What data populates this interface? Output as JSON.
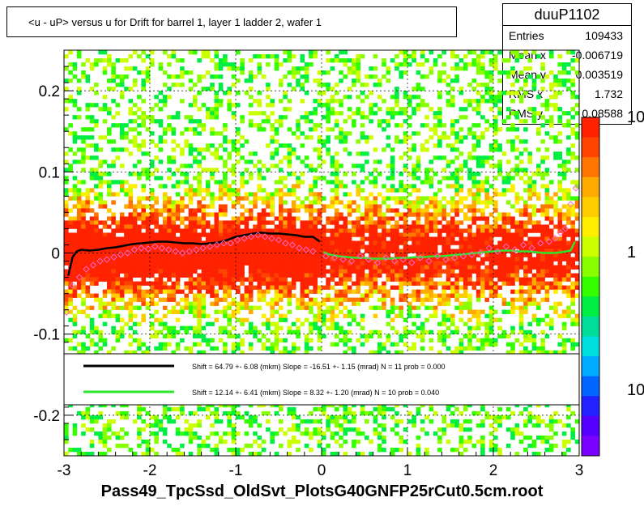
{
  "chart_data": {
    "type": "heatmap",
    "title": "<u - uP>       versus   u for Drift for barrel 1, layer 1 ladder 2, wafer 1",
    "xlabel": "",
    "ylabel": "",
    "xlim": [
      -3,
      3
    ],
    "ylim": [
      -0.25,
      0.25
    ],
    "x_ticks": [
      "-3",
      "-2",
      "-1",
      "0",
      "1",
      "2",
      "3"
    ],
    "y_ticks": [
      "-0.2",
      "-0.1",
      "0",
      "0.1",
      "0.2"
    ],
    "grid": true,
    "colorbar_ticks": [
      "10",
      "1",
      "10"
    ],
    "colors": {
      "black_fit": "#000000",
      "green_fit": "#2ee52e",
      "pink_points": "#ff66cc",
      "heat_high": "#ff2200",
      "heat_mid": "#ffcc00",
      "heat_low": "#22dd22"
    },
    "stats": {
      "name": "duuP1102",
      "rows": [
        {
          "label": "Entries",
          "value": "109433"
        },
        {
          "label": "Mean x",
          "value": "-0.006719"
        },
        {
          "label": "Mean y",
          "value": "0.003519"
        },
        {
          "label": "RMS x",
          "value": "1.732"
        },
        {
          "label": "RMS y",
          "value": "0.08588"
        }
      ]
    },
    "legend": [
      {
        "line_color": "black",
        "text": "Shift =    64.79 +- 6.08 (mkm) Slope =   -16.51 +- 1.15 (mrad)  N = 11 prob = 0.000"
      },
      {
        "line_color": "green",
        "text": "Shift =    12.14 +- 6.41 (mkm) Slope =     8.32 +- 1.20 (mrad)  N = 10 prob = 0.040"
      }
    ],
    "series": [
      {
        "color": "black",
        "x": [
          -2.95,
          -2.9,
          -2.85,
          -2.8,
          -2.7,
          -2.6,
          -2.5,
          -2.4,
          -2.3,
          -2.2,
          -2.1,
          -2.0,
          -1.9,
          -1.8,
          -1.7,
          -1.6,
          -1.5,
          -1.4,
          -1.3,
          -1.2,
          -1.1,
          -1.0,
          -0.9,
          -0.8,
          -0.7,
          -0.6,
          -0.5,
          -0.4,
          -0.3,
          -0.2,
          -0.1,
          -0.02
        ],
        "y": [
          -0.028,
          -0.005,
          0.002,
          0.004,
          0.003,
          0.004,
          0.006,
          0.007,
          0.009,
          0.011,
          0.012,
          0.013,
          0.014,
          0.014,
          0.013,
          0.012,
          0.012,
          0.011,
          0.012,
          0.013,
          0.016,
          0.02,
          0.022,
          0.024,
          0.025,
          0.024,
          0.024,
          0.023,
          0.022,
          0.02,
          0.02,
          0.014
        ]
      },
      {
        "color": "green",
        "x": [
          0.02,
          0.1,
          0.2,
          0.3,
          0.4,
          0.5,
          0.6,
          0.7,
          0.8,
          0.9,
          1.0,
          1.1,
          1.2,
          1.3,
          1.4,
          1.5,
          1.6,
          1.7,
          1.8,
          1.9,
          2.0,
          2.1,
          2.2,
          2.3,
          2.4,
          2.5,
          2.6,
          2.7,
          2.8,
          2.9,
          2.95
        ],
        "y": [
          0.001,
          -0.002,
          -0.004,
          -0.005,
          -0.006,
          -0.006,
          -0.007,
          -0.007,
          -0.007,
          -0.006,
          -0.006,
          -0.005,
          -0.005,
          -0.004,
          -0.004,
          -0.003,
          -0.002,
          -0.001,
          0.0,
          0.001,
          0.002,
          0.003,
          0.003,
          0.002,
          0.002,
          0.001,
          0.0,
          0.0,
          0.001,
          0.003,
          0.014
        ]
      }
    ],
    "markers": {
      "color": "pink",
      "x": [
        -2.97,
        -2.9,
        -2.82,
        -2.74,
        -2.66,
        -2.58,
        -2.5,
        -2.42,
        -2.34,
        -2.26,
        -2.18,
        -2.1,
        -2.02,
        -1.94,
        -1.86,
        -1.78,
        -1.7,
        -1.62,
        -1.54,
        -1.46,
        -1.38,
        -1.3,
        -1.22,
        -1.14,
        -1.06,
        -0.98,
        -0.9,
        -0.82,
        -0.74,
        -0.66,
        -0.58,
        -0.5,
        -0.42,
        -0.34,
        -0.26,
        -0.18,
        -0.1,
        0.05,
        0.15,
        0.25,
        0.35,
        0.45,
        0.55,
        0.65,
        0.75,
        0.85,
        0.95,
        1.05,
        1.15,
        1.25,
        1.35,
        1.45,
        1.55,
        1.65,
        1.75,
        1.85,
        1.95,
        2.05,
        2.15,
        2.25,
        2.35,
        2.45,
        2.55,
        2.65,
        2.72,
        2.78,
        2.84,
        2.9,
        2.96
      ],
      "y": [
        -0.073,
        -0.04,
        -0.03,
        -0.02,
        -0.015,
        -0.01,
        -0.008,
        -0.005,
        -0.002,
        0.0,
        0.004,
        0.006,
        0.005,
        0.008,
        0.006,
        0.004,
        0.002,
        0.0,
        0.002,
        0.004,
        0.006,
        0.008,
        0.01,
        0.012,
        0.012,
        0.016,
        0.018,
        0.02,
        0.022,
        0.02,
        0.018,
        0.016,
        0.012,
        0.01,
        0.006,
        0.004,
        0.002,
        -0.004,
        -0.006,
        -0.008,
        -0.01,
        -0.004,
        -0.008,
        -0.012,
        -0.006,
        -0.01,
        -0.008,
        -0.012,
        -0.006,
        -0.01,
        -0.004,
        -0.008,
        -0.006,
        -0.004,
        -0.002,
        0.0,
        0.006,
        0.002,
        0.008,
        0.004,
        0.01,
        0.006,
        0.012,
        0.014,
        0.018,
        0.025,
        0.03,
        0.06,
        0.08
      ]
    }
  }
}
